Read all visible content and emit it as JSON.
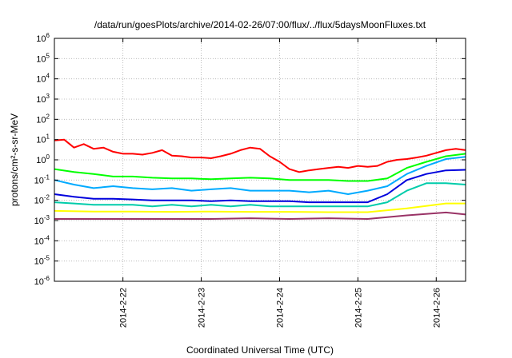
{
  "chart_data": {
    "type": "line",
    "title": "/data/run/goesPlots/archive/2014-02-26/07:00/flux/../flux/5daysMoonFluxes.txt",
    "xlabel": "Coordinated Universal Time (UTC)",
    "ylabel": "protons/cm²-s-sr-MeV",
    "yscale": "log",
    "ylim": [
      1e-06,
      1000000.0
    ],
    "xlim": [
      "2014-02-21T03:00",
      "2014-02-26T09:00"
    ],
    "grid": true,
    "legend": "none",
    "y_ticks": [
      {
        "value": 1e-06,
        "base": "10",
        "exp": "-6"
      },
      {
        "value": 1e-05,
        "base": "10",
        "exp": "-5"
      },
      {
        "value": 0.0001,
        "base": "10",
        "exp": "-4"
      },
      {
        "value": 0.001,
        "base": "10",
        "exp": "-3"
      },
      {
        "value": 0.01,
        "base": "10",
        "exp": "-2"
      },
      {
        "value": 0.1,
        "base": "10",
        "exp": "-1"
      },
      {
        "value": 1.0,
        "base": "10",
        "exp": "0"
      },
      {
        "value": 10.0,
        "base": "10",
        "exp": "1"
      },
      {
        "value": 100.0,
        "base": "10",
        "exp": "2"
      },
      {
        "value": 1000.0,
        "base": "10",
        "exp": "3"
      },
      {
        "value": 10000.0,
        "base": "10",
        "exp": "4"
      },
      {
        "value": 100000.0,
        "base": "10",
        "exp": "5"
      },
      {
        "value": 1000000.0,
        "base": "10",
        "exp": "6"
      }
    ],
    "x_ticks": [
      {
        "value": "2014-02-22T00:00",
        "label": "2014-2-22"
      },
      {
        "value": "2014-02-23T00:00",
        "label": "2014-2-23"
      },
      {
        "value": "2014-02-24T00:00",
        "label": "2014-2-24"
      },
      {
        "value": "2014-02-25T00:00",
        "label": "2014-2-25"
      },
      {
        "value": "2014-02-26T00:00",
        "label": "2014-2-26"
      }
    ],
    "series": [
      {
        "color": "#ff0000",
        "x": [
          "2014-02-21T03:00",
          "2014-02-21T06:00",
          "2014-02-21T09:00",
          "2014-02-21T12:00",
          "2014-02-21T15:00",
          "2014-02-21T18:00",
          "2014-02-21T21:00",
          "2014-02-22T00:00",
          "2014-02-22T03:00",
          "2014-02-22T06:00",
          "2014-02-22T09:00",
          "2014-02-22T12:00",
          "2014-02-22T15:00",
          "2014-02-22T18:00",
          "2014-02-22T21:00",
          "2014-02-23T00:00",
          "2014-02-23T03:00",
          "2014-02-23T06:00",
          "2014-02-23T09:00",
          "2014-02-23T12:00",
          "2014-02-23T15:00",
          "2014-02-23T18:00",
          "2014-02-23T21:00",
          "2014-02-24T00:00",
          "2014-02-24T03:00",
          "2014-02-24T06:00",
          "2014-02-24T09:00",
          "2014-02-24T12:00",
          "2014-02-24T15:00",
          "2014-02-24T18:00",
          "2014-02-24T21:00",
          "2014-02-25T00:00",
          "2014-02-25T03:00",
          "2014-02-25T06:00",
          "2014-02-25T09:00",
          "2014-02-25T12:00",
          "2014-02-25T15:00",
          "2014-02-25T18:00",
          "2014-02-25T21:00",
          "2014-02-26T00:00",
          "2014-02-26T03:00",
          "2014-02-26T06:00",
          "2014-02-26T09:00"
        ],
        "values": [
          9,
          10,
          4,
          6,
          3.5,
          4,
          2.5,
          2,
          2,
          1.8,
          2.2,
          3,
          1.6,
          1.5,
          1.3,
          1.3,
          1.2,
          1.5,
          2,
          3,
          4,
          3.5,
          1.5,
          0.8,
          0.35,
          0.25,
          0.3,
          0.35,
          0.4,
          0.45,
          0.4,
          0.5,
          0.45,
          0.5,
          0.8,
          1,
          1.1,
          1.3,
          1.6,
          2.2,
          3,
          3.5,
          3
        ]
      },
      {
        "color": "#00ff00",
        "x": [
          "2014-02-21T03:00",
          "2014-02-21T09:00",
          "2014-02-21T15:00",
          "2014-02-21T21:00",
          "2014-02-22T03:00",
          "2014-02-22T09:00",
          "2014-02-22T15:00",
          "2014-02-22T21:00",
          "2014-02-23T03:00",
          "2014-02-23T09:00",
          "2014-02-23T15:00",
          "2014-02-23T21:00",
          "2014-02-24T03:00",
          "2014-02-24T09:00",
          "2014-02-24T15:00",
          "2014-02-24T21:00",
          "2014-02-25T03:00",
          "2014-02-25T09:00",
          "2014-02-25T15:00",
          "2014-02-25T21:00",
          "2014-02-26T03:00",
          "2014-02-26T09:00"
        ],
        "values": [
          0.35,
          0.25,
          0.2,
          0.15,
          0.15,
          0.13,
          0.12,
          0.12,
          0.11,
          0.12,
          0.13,
          0.12,
          0.1,
          0.1,
          0.1,
          0.09,
          0.09,
          0.12,
          0.4,
          0.8,
          1.5,
          2
        ]
      },
      {
        "color": "#00aaff",
        "x": [
          "2014-02-21T03:00",
          "2014-02-21T09:00",
          "2014-02-21T15:00",
          "2014-02-21T21:00",
          "2014-02-22T03:00",
          "2014-02-22T09:00",
          "2014-02-22T15:00",
          "2014-02-22T21:00",
          "2014-02-23T03:00",
          "2014-02-23T09:00",
          "2014-02-23T15:00",
          "2014-02-23T21:00",
          "2014-02-24T03:00",
          "2014-02-24T09:00",
          "2014-02-24T15:00",
          "2014-02-24T21:00",
          "2014-02-25T03:00",
          "2014-02-25T09:00",
          "2014-02-25T15:00",
          "2014-02-25T21:00",
          "2014-02-26T03:00",
          "2014-02-26T09:00"
        ],
        "values": [
          0.1,
          0.06,
          0.04,
          0.05,
          0.04,
          0.035,
          0.04,
          0.03,
          0.035,
          0.04,
          0.03,
          0.03,
          0.03,
          0.025,
          0.03,
          0.02,
          0.03,
          0.05,
          0.2,
          0.5,
          1.1,
          1.4
        ]
      },
      {
        "color": "#0000dd",
        "x": [
          "2014-02-21T03:00",
          "2014-02-21T09:00",
          "2014-02-21T15:00",
          "2014-02-21T21:00",
          "2014-02-22T03:00",
          "2014-02-22T09:00",
          "2014-02-22T15:00",
          "2014-02-22T21:00",
          "2014-02-23T03:00",
          "2014-02-23T09:00",
          "2014-02-23T15:00",
          "2014-02-23T21:00",
          "2014-02-24T03:00",
          "2014-02-24T09:00",
          "2014-02-24T15:00",
          "2014-02-24T21:00",
          "2014-02-25T03:00",
          "2014-02-25T09:00",
          "2014-02-25T15:00",
          "2014-02-25T21:00",
          "2014-02-26T03:00",
          "2014-02-26T09:00"
        ],
        "values": [
          0.02,
          0.015,
          0.012,
          0.012,
          0.011,
          0.01,
          0.01,
          0.01,
          0.009,
          0.01,
          0.009,
          0.009,
          0.009,
          0.008,
          0.008,
          0.008,
          0.008,
          0.02,
          0.1,
          0.2,
          0.3,
          0.32
        ]
      },
      {
        "color": "#00ccaa",
        "x": [
          "2014-02-21T03:00",
          "2014-02-21T09:00",
          "2014-02-21T15:00",
          "2014-02-21T21:00",
          "2014-02-22T03:00",
          "2014-02-22T09:00",
          "2014-02-22T15:00",
          "2014-02-22T21:00",
          "2014-02-23T03:00",
          "2014-02-23T09:00",
          "2014-02-23T15:00",
          "2014-02-23T21:00",
          "2014-02-24T03:00",
          "2014-02-24T09:00",
          "2014-02-24T15:00",
          "2014-02-24T21:00",
          "2014-02-25T03:00",
          "2014-02-25T09:00",
          "2014-02-25T15:00",
          "2014-02-25T21:00",
          "2014-02-26T03:00",
          "2014-02-26T09:00"
        ],
        "values": [
          0.008,
          0.007,
          0.006,
          0.006,
          0.006,
          0.005,
          0.006,
          0.005,
          0.006,
          0.005,
          0.006,
          0.005,
          0.005,
          0.005,
          0.005,
          0.005,
          0.005,
          0.008,
          0.03,
          0.07,
          0.07,
          0.06
        ]
      },
      {
        "color": "#ffff00",
        "x": [
          "2014-02-21T03:00",
          "2014-02-21T15:00",
          "2014-02-22T03:00",
          "2014-02-22T15:00",
          "2014-02-23T03:00",
          "2014-02-23T15:00",
          "2014-02-24T03:00",
          "2014-02-24T15:00",
          "2014-02-25T03:00",
          "2014-02-25T15:00",
          "2014-02-26T03:00",
          "2014-02-26T09:00"
        ],
        "values": [
          0.003,
          0.0028,
          0.0028,
          0.0027,
          0.0028,
          0.0027,
          0.0027,
          0.0026,
          0.0026,
          0.004,
          0.007,
          0.007
        ]
      },
      {
        "color": "#993366",
        "x": [
          "2014-02-21T03:00",
          "2014-02-21T15:00",
          "2014-02-22T03:00",
          "2014-02-22T15:00",
          "2014-02-23T03:00",
          "2014-02-23T15:00",
          "2014-02-24T03:00",
          "2014-02-24T15:00",
          "2014-02-25T03:00",
          "2014-02-25T15:00",
          "2014-02-26T03:00",
          "2014-02-26T09:00"
        ],
        "values": [
          0.0012,
          0.0012,
          0.0012,
          0.0012,
          0.0012,
          0.0013,
          0.0012,
          0.0013,
          0.0012,
          0.0018,
          0.0025,
          0.002
        ]
      }
    ]
  }
}
